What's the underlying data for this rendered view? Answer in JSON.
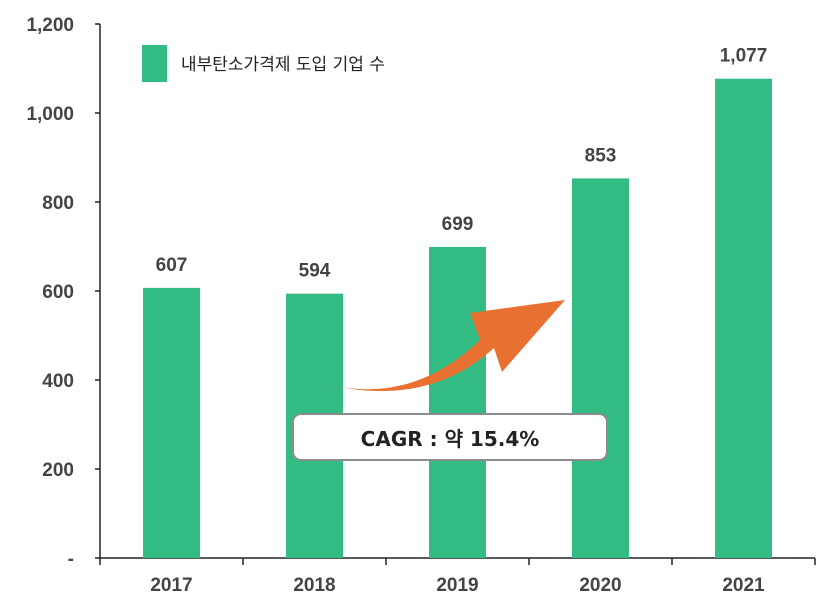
{
  "chart_data": {
    "type": "bar",
    "categories": [
      "2017",
      "2018",
      "2019",
      "2020",
      "2021"
    ],
    "series": [
      {
        "name": "내부탄소가격제 도입 기업 수",
        "values": [
          607,
          594,
          699,
          853,
          1077
        ]
      }
    ],
    "data_labels": [
      "607",
      "594",
      "699",
      "853",
      "1,077"
    ],
    "y_ticks": [
      {
        "value": 0,
        "label": "-"
      },
      {
        "value": 200,
        "label": "200"
      },
      {
        "value": 400,
        "label": "400"
      },
      {
        "value": 600,
        "label": "600"
      },
      {
        "value": 800,
        "label": "800"
      },
      {
        "value": 1000,
        "label": "1,000"
      },
      {
        "value": 1200,
        "label": "1,200"
      }
    ],
    "ylim": [
      0,
      1200
    ],
    "grid": false,
    "legend_position": "top-left",
    "bar_color": "#33bb84",
    "arrow_color": "#e87030",
    "annotation": "CAGR : 약 15.4%"
  }
}
